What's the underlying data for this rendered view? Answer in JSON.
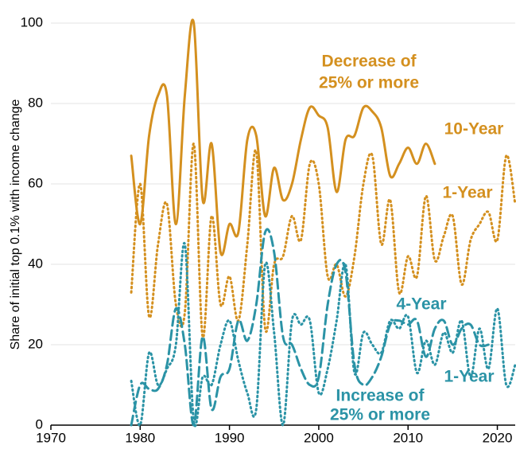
{
  "chart_data": {
    "type": "line",
    "ylabel": "Share of initial top 0.1% with income change",
    "xlim": [
      1970,
      2022
    ],
    "xticks": [
      1970,
      1980,
      1990,
      2000,
      2010,
      2020
    ],
    "ylim": [
      0,
      100
    ],
    "yticks": [
      0,
      20,
      40,
      60,
      80,
      100
    ],
    "grid": true,
    "series": [
      {
        "name": "10-Year",
        "color": "#d4901f",
        "style": "solid",
        "x": [
          1979,
          1980,
          1981,
          1982,
          1983,
          1984,
          1985,
          1986,
          1987,
          1988,
          1989,
          1990,
          1991,
          1992,
          1993,
          1994,
          1995,
          1996,
          1997,
          1998,
          1999,
          2000,
          2001,
          2002,
          2003,
          2004,
          2005,
          2006,
          2007,
          2008,
          2009,
          2010,
          2011,
          2012,
          2013
        ],
        "values": [
          67,
          50,
          72,
          82,
          82,
          50,
          82,
          100,
          56,
          70,
          43,
          50,
          48,
          71,
          72,
          52,
          64,
          56,
          60,
          71,
          79,
          77,
          74,
          58,
          71,
          72,
          79,
          78,
          74,
          62,
          65,
          69,
          65,
          70,
          65
        ]
      },
      {
        "name": "1-Year",
        "color": "#d4901f",
        "style": "dotted",
        "x": [
          1979,
          1980,
          1981,
          1982,
          1983,
          1984,
          1985,
          1986,
          1987,
          1988,
          1989,
          1990,
          1991,
          1992,
          1993,
          1994,
          1995,
          1996,
          1997,
          1998,
          1999,
          2000,
          2001,
          2002,
          2003,
          2004,
          2005,
          2006,
          2007,
          2008,
          2009,
          2010,
          2011,
          2012,
          2013,
          2014,
          2015,
          2016,
          2017,
          2018,
          2019,
          2020,
          2021,
          2022
        ],
        "values": [
          33,
          60,
          27,
          45,
          55,
          30,
          28,
          70,
          22,
          52,
          30,
          37,
          26,
          45,
          68,
          24,
          40,
          42,
          52,
          46,
          65,
          60,
          37,
          40,
          32,
          42,
          60,
          67,
          45,
          56,
          33,
          42,
          37,
          57,
          41,
          47,
          52,
          35,
          46,
          50,
          53,
          46,
          67,
          55
        ]
      },
      {
        "name": "4-Year",
        "color": "#2b93a6",
        "style": "dashed",
        "x": [
          1979,
          1980,
          1981,
          1982,
          1983,
          1984,
          1985,
          1986,
          1987,
          1988,
          1989,
          1990,
          1991,
          1992,
          1993,
          1994,
          1995,
          1996,
          1997,
          1998,
          1999,
          2000,
          2001,
          2002,
          2003,
          2004,
          2005,
          2006,
          2007,
          2008,
          2009,
          2010,
          2011,
          2012,
          2013,
          2014,
          2015,
          2016,
          2017,
          2018,
          2019
        ],
        "values": [
          0,
          10,
          9,
          9,
          15,
          29,
          20,
          0,
          22,
          4,
          12,
          14,
          26,
          21,
          30,
          48,
          43,
          22,
          20,
          14,
          10,
          12,
          30,
          40,
          38,
          15,
          10,
          12,
          17,
          25,
          26,
          25,
          26,
          17,
          24,
          26,
          20,
          24,
          25,
          20,
          20
        ]
      },
      {
        "name": "1-Year",
        "color": "#2b93a6",
        "style": "dotted",
        "x": [
          1979,
          1980,
          1981,
          1982,
          1983,
          1984,
          1985,
          1986,
          1987,
          1988,
          1989,
          1990,
          1991,
          1992,
          1993,
          1994,
          1995,
          1996,
          1997,
          1998,
          1999,
          2000,
          2001,
          2002,
          2003,
          2004,
          2005,
          2006,
          2007,
          2008,
          2009,
          2010,
          2011,
          2012,
          2013,
          2014,
          2015,
          2016,
          2017,
          2018,
          2019,
          2020,
          2021,
          2022
        ],
        "values": [
          11,
          0,
          18,
          10,
          14,
          20,
          45,
          1,
          12,
          10,
          20,
          26,
          16,
          8,
          4,
          40,
          23,
          0,
          26,
          25,
          26,
          8,
          14,
          26,
          40,
          13,
          23,
          20,
          18,
          26,
          24,
          27,
          13,
          21,
          15,
          23,
          18,
          26,
          12,
          24,
          14,
          29,
          10,
          15
        ]
      }
    ],
    "annotations": [
      "Decrease of",
      "25% or more",
      "Increase of",
      "25% or more"
    ]
  }
}
